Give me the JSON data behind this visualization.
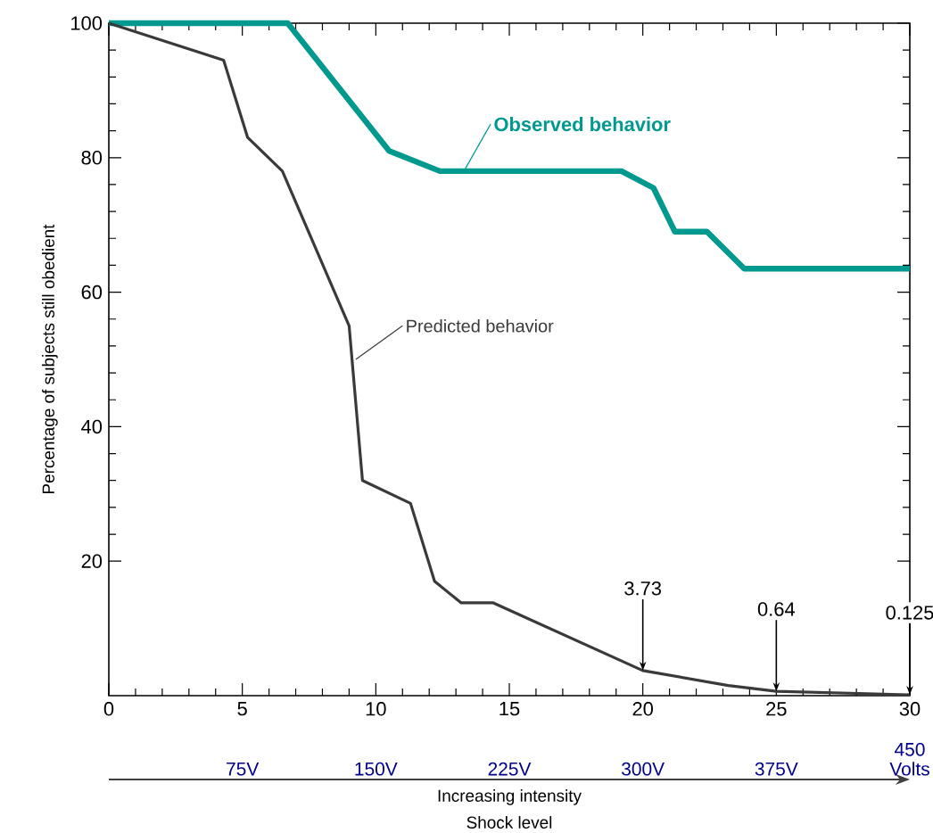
{
  "chart_data": {
    "type": "line",
    "xlabel": "Shock level",
    "ylabel": "Percentage of subjects still obedient",
    "x2label": "Increasing intensity",
    "xlim": [
      0,
      30
    ],
    "ylim": [
      0,
      100
    ],
    "xticks": [
      0,
      5,
      10,
      15,
      20,
      25,
      30
    ],
    "yticks": [
      20,
      40,
      60,
      80,
      100
    ],
    "x2lim": [
      0,
      450
    ],
    "x2ticks": [
      {
        "value": 75,
        "label": "75V"
      },
      {
        "value": 150,
        "label": "150V"
      },
      {
        "value": 225,
        "label": "225V"
      },
      {
        "value": 300,
        "label": "300V"
      },
      {
        "value": 375,
        "label": "375V"
      },
      {
        "value": 450,
        "label": "450 Volts"
      }
    ],
    "marker": "none",
    "line_style": "solid",
    "series": [
      {
        "name": "Observed behavior",
        "color": "#00998f",
        "x": [
          0,
          6.7,
          10.5,
          12.4,
          19.2,
          20.4,
          21.2,
          22.4,
          23.8,
          30
        ],
        "values": [
          100,
          100,
          81,
          78,
          78,
          75.5,
          69,
          69,
          63.5,
          63.5
        ]
      },
      {
        "name": "Predicted behavior",
        "color": "#3a3a3a",
        "x": [
          0,
          4.3,
          5.2,
          6.5,
          9.0,
          9.5,
          11.3,
          12.2,
          13.2,
          14.4,
          20,
          23.2,
          25,
          30
        ],
        "values": [
          100,
          94.5,
          83,
          78,
          55,
          32,
          28.6,
          17,
          13.8,
          13.8,
          3.73,
          1.5,
          0.64,
          0.125
        ]
      }
    ],
    "annotations": [
      {
        "text": "3.73",
        "x": 20,
        "y": 3.73
      },
      {
        "text": "0.64",
        "x": 25,
        "y": 0.64
      },
      {
        "text": "0.125",
        "x": 30,
        "y": 0.125
      }
    ]
  }
}
